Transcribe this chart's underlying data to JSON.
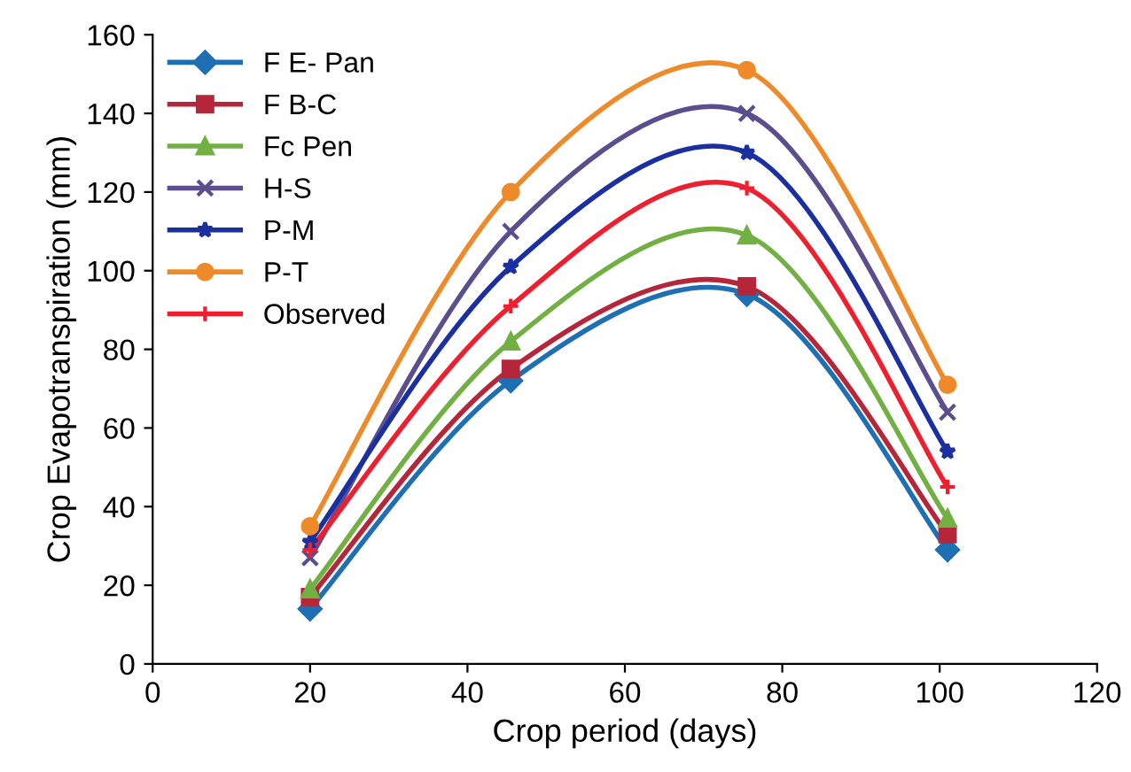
{
  "chart_data": {
    "type": "line",
    "xlabel": "Crop period (days)",
    "ylabel": "Crop Evapotranspiration (mm)",
    "x": [
      20,
      45.5,
      75.5,
      101
    ],
    "series": [
      {
        "name": "F E- Pan",
        "color": "#1f6fb5",
        "marker": "diamond",
        "values": [
          14,
          72,
          94,
          29
        ]
      },
      {
        "name": "F B-C",
        "color": "#b5263a",
        "marker": "square",
        "values": [
          17,
          75,
          96,
          33
        ]
      },
      {
        "name": "Fc Pen",
        "color": "#72b043",
        "marker": "triangle",
        "values": [
          19,
          82,
          109,
          37
        ]
      },
      {
        "name": "H-S",
        "color": "#5b4e8e",
        "marker": "cross",
        "values": [
          27,
          110,
          140,
          64
        ]
      },
      {
        "name": "P-M",
        "color": "#1c2fa0",
        "marker": "star",
        "values": [
          31,
          101,
          130,
          54
        ]
      },
      {
        "name": "P-T",
        "color": "#ef8a2a",
        "marker": "circle",
        "values": [
          35,
          120,
          151,
          71
        ]
      },
      {
        "name": "Observed",
        "color": "#ee2030",
        "marker": "plus",
        "values": [
          29,
          91,
          121,
          45
        ]
      }
    ],
    "xlim": [
      0,
      120
    ],
    "xticks": [
      0,
      20,
      40,
      60,
      80,
      100,
      120
    ],
    "ylim": [
      0,
      160
    ],
    "yticks": [
      0,
      20,
      40,
      60,
      80,
      100,
      120,
      140,
      160
    ],
    "grid": false,
    "legend": "top left",
    "line_style": "solid"
  }
}
